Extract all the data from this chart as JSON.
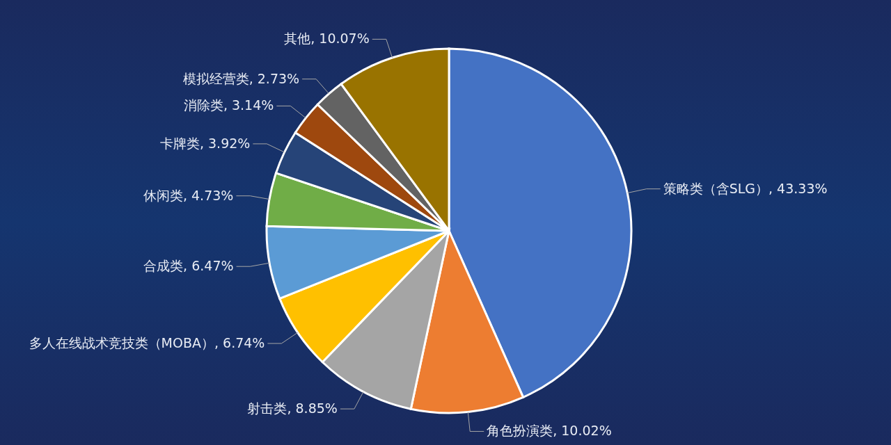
{
  "chart_data": {
    "type": "pie",
    "categories": [
      "策略类（含SLG）",
      "角色扮演类",
      "射击类",
      "多人在线战术竞技类（MOBA）",
      "合成类",
      "休闲类",
      "卡牌类",
      "消除类",
      "模拟经营类",
      "其他"
    ],
    "values": [
      43.33,
      10.02,
      8.85,
      6.74,
      6.47,
      4.73,
      3.92,
      3.14,
      2.73,
      10.07
    ],
    "value_labels": [
      "43.33%",
      "10.02%",
      "8.85%",
      "6.74%",
      "6.47%",
      "4.73%",
      "3.92%",
      "3.14%",
      "2.73%",
      "10.07%"
    ],
    "colors": [
      "#4472c4",
      "#ed7d31",
      "#a5a5a5",
      "#ffc000",
      "#5b9bd5",
      "#70ad47",
      "#264478",
      "#9e480e",
      "#636363",
      "#997300"
    ],
    "legend": false
  }
}
